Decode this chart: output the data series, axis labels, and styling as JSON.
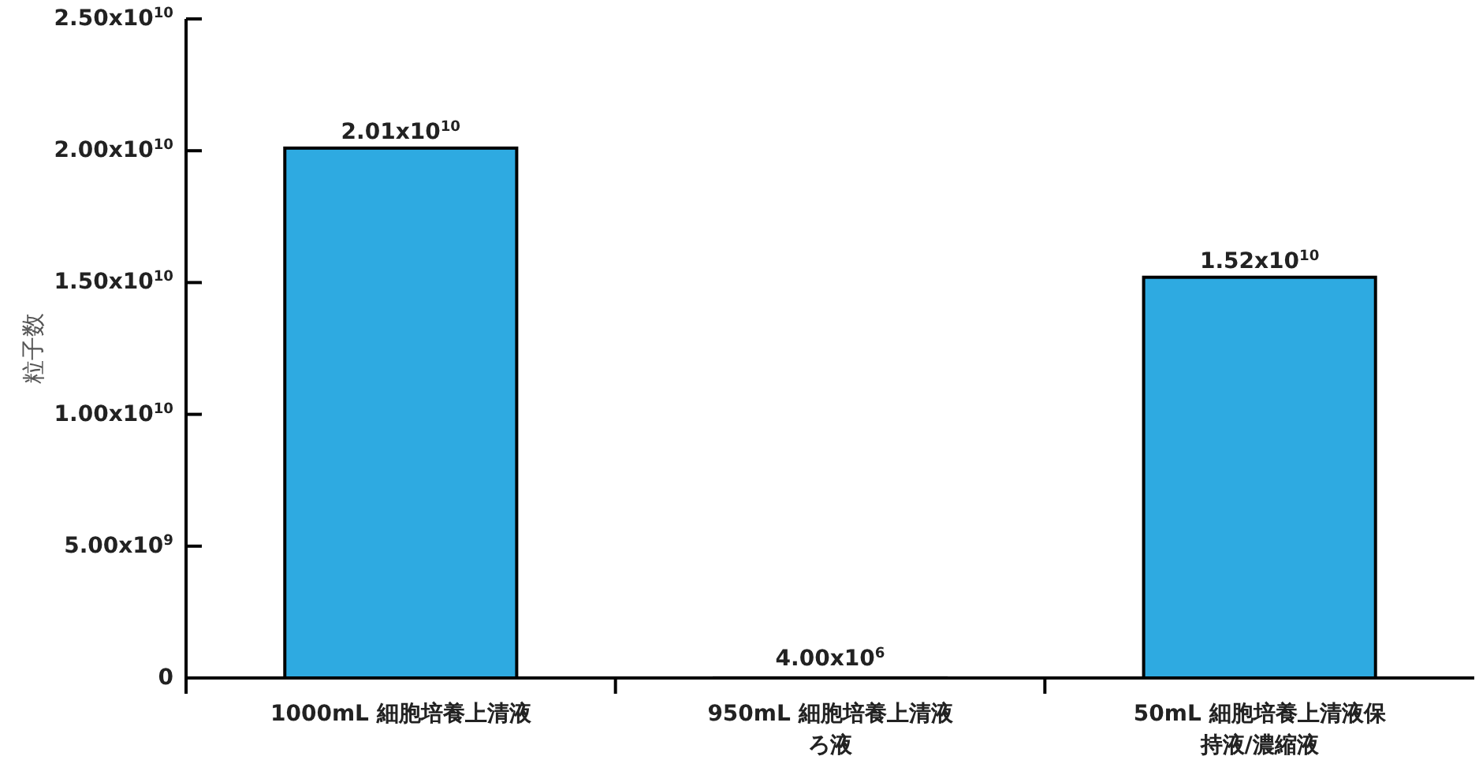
{
  "chart_data": {
    "type": "bar",
    "ylabel": "粒子数",
    "categories": [
      "1000mL 細胞培養上清液",
      "950mL 細胞培養上清液ろ液",
      "50mL 細胞培養上清液保持液/濃縮液"
    ],
    "values": [
      20100000000.0,
      4000000.0,
      15200000000.0
    ],
    "value_labels": [
      "2.01x10$^{10}$",
      "4.00x10$^{6}$",
      "1.52x10$^{10}$"
    ],
    "color": "#2eaae1",
    "ylim": [
      0,
      25000000000.0
    ],
    "yticks": [
      {
        "value": 0,
        "label": "0"
      },
      {
        "value": 5000000000.0,
        "label": "5.00x10$^{9}$"
      },
      {
        "value": 10000000000.0,
        "label": "1.00x10$^{10}$"
      },
      {
        "value": 15000000000.0,
        "label": "1.50x10$^{10}$"
      },
      {
        "value": 20000000000.0,
        "label": "2.00x10$^{10}$"
      },
      {
        "value": 25000000000.0,
        "label": "2.50x10$^{10}$"
      }
    ],
    "grid": false
  }
}
